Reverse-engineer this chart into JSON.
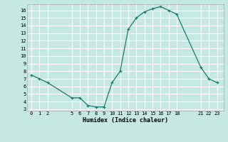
{
  "x": [
    0,
    1,
    2,
    5,
    6,
    7,
    8,
    9,
    10,
    11,
    12,
    13,
    14,
    15,
    16,
    17,
    18,
    21,
    22,
    23
  ],
  "y": [
    7.5,
    7.0,
    6.5,
    4.5,
    4.5,
    3.5,
    3.3,
    3.3,
    6.5,
    8.0,
    13.5,
    15.0,
    15.8,
    16.2,
    16.5,
    16.0,
    15.5,
    8.5,
    7.0,
    6.5
  ],
  "xticks": [
    0,
    1,
    2,
    5,
    6,
    7,
    8,
    9,
    10,
    11,
    12,
    13,
    14,
    15,
    16,
    17,
    18,
    21,
    22,
    23
  ],
  "yticks": [
    3,
    4,
    5,
    6,
    7,
    8,
    9,
    10,
    11,
    12,
    13,
    14,
    15,
    16
  ],
  "ylim": [
    2.8,
    16.8
  ],
  "xlim": [
    -0.5,
    23.8
  ],
  "xlabel": "Humidex (Indice chaleur)",
  "line_color": "#1a7a6e",
  "marker_color": "#1a7a6e",
  "bg_color": "#c5e8e3",
  "grid_color": "#ffffff"
}
